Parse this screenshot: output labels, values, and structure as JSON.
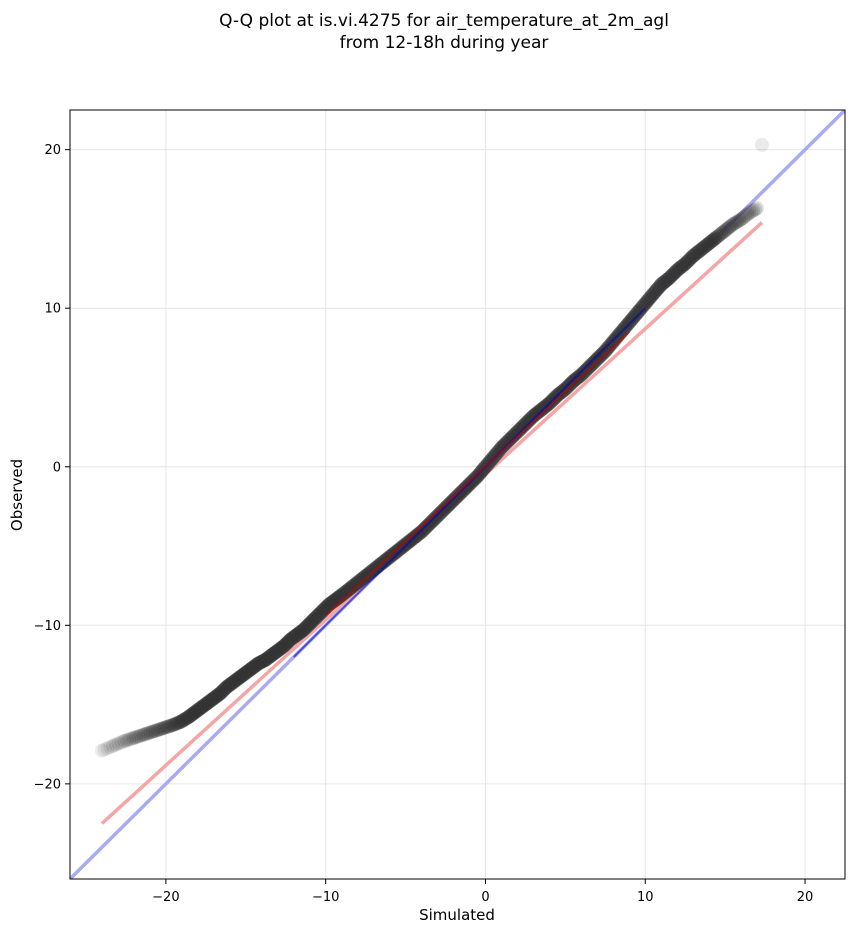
{
  "chart_data": {
    "type": "scatter",
    "title": "Q-Q plot at is.vi.4275 for air_temperature_at_2m_agl",
    "subtitle": "from 12-18h during year",
    "xlabel": "Simulated",
    "ylabel": "Observed",
    "xlim": [
      -26,
      22.5
    ],
    "ylim": [
      -26,
      22.5
    ],
    "xticks": [
      -20,
      -10,
      0,
      10,
      20
    ],
    "yticks": [
      -20,
      -10,
      0,
      10,
      20
    ],
    "xtick_labels": [
      "−20",
      "−10",
      "0",
      "10",
      "20"
    ],
    "ytick_labels": [
      "−20",
      "−10",
      "0",
      "10",
      "20"
    ],
    "grid": true,
    "colors": {
      "points": "#333333",
      "identity_line": "#aaaaf2",
      "fit_line": "#f4a6a6",
      "inner_blue": "#0000cc",
      "inner_red": "#cc0000"
    },
    "identity_line": {
      "x": [
        -26,
        22.5
      ],
      "y": [
        -26,
        22.5
      ]
    },
    "fit_line": {
      "x": [
        -24,
        17.3
      ],
      "y": [
        -22.5,
        15.4
      ]
    },
    "inner_blue_segment": {
      "x": [
        -12,
        10
      ],
      "y": [
        -12,
        10
      ]
    },
    "inner_red_segment": {
      "x": [
        -10,
        9
      ],
      "y": [
        -9.4,
        8.5
      ]
    },
    "quantiles": {
      "x": [
        -24,
        -23.3,
        -22.6,
        -22,
        -21.4,
        -20.8,
        -20.2,
        -19.6,
        -19.1,
        -18.6,
        -18.2,
        -17.8,
        -17.4,
        -17,
        -16.6,
        -16.2,
        -15.8,
        -15.4,
        -15,
        -14.6,
        -14.2,
        -13.8,
        -13.4,
        -13,
        -12.6,
        -12.2,
        -11.8,
        -11.4,
        -11,
        -10.6,
        -10.2,
        -9.8,
        -9.4,
        -9,
        -8.5,
        -8,
        -7.5,
        -7,
        -6.5,
        -6,
        -5.5,
        -5,
        -4.5,
        -4,
        -3.5,
        -3,
        -2.5,
        -2,
        -1.5,
        -1,
        -0.5,
        0,
        0.5,
        1,
        1.5,
        2,
        2.5,
        3,
        3.5,
        4,
        4.5,
        5,
        5.5,
        6,
        6.5,
        7,
        7.5,
        8,
        8.5,
        9,
        9.5,
        10,
        10.5,
        11,
        11.5,
        12,
        12.5,
        13,
        13.5,
        14,
        14.5,
        15,
        15.5,
        16,
        16.5,
        17,
        17.3
      ],
      "y": [
        -17.9,
        -17.6,
        -17.3,
        -17.1,
        -16.9,
        -16.7,
        -16.5,
        -16.3,
        -16.1,
        -15.8,
        -15.5,
        -15.2,
        -14.9,
        -14.6,
        -14.3,
        -13.9,
        -13.6,
        -13.3,
        -13,
        -12.7,
        -12.4,
        -12.2,
        -11.9,
        -11.6,
        -11.3,
        -10.9,
        -10.6,
        -10.3,
        -9.9,
        -9.5,
        -9.1,
        -8.7,
        -8.4,
        -8.1,
        -7.7,
        -7.3,
        -6.9,
        -6.5,
        -6.1,
        -5.7,
        -5.3,
        -4.9,
        -4.5,
        -4.1,
        -3.6,
        -3.1,
        -2.6,
        -2.1,
        -1.6,
        -1.1,
        -0.6,
        0,
        0.6,
        1.2,
        1.7,
        2.2,
        2.7,
        3.2,
        3.6,
        4,
        4.5,
        4.9,
        5.4,
        5.8,
        6.3,
        6.8,
        7.3,
        7.9,
        8.5,
        9.1,
        9.7,
        10.3,
        10.9,
        11.5,
        11.9,
        12.4,
        12.8,
        13.3,
        13.7,
        14.1,
        14.5,
        14.9,
        15.3,
        15.6,
        16,
        16.3,
        20.3
      ]
    }
  }
}
